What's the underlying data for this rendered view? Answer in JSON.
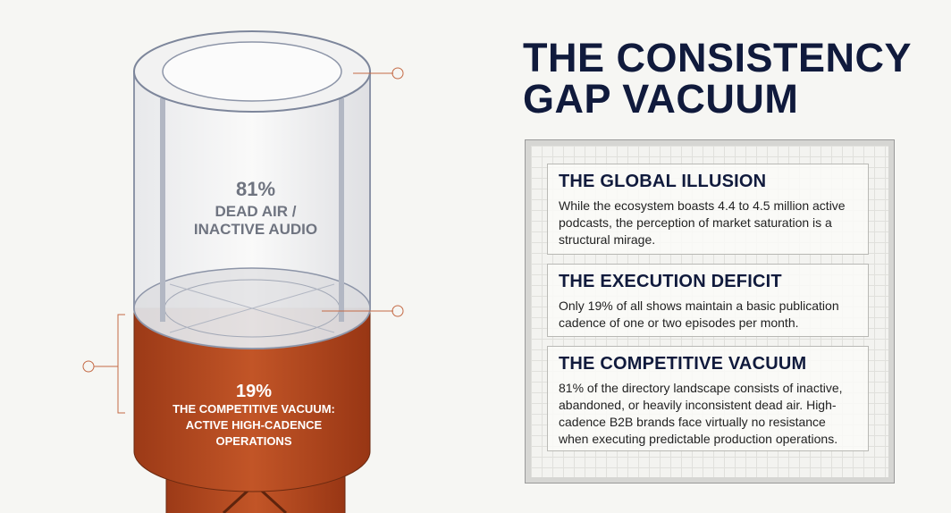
{
  "title": [
    "THE CONSISTENCY",
    "GAP VACUUM"
  ],
  "cylinder": {
    "upper": {
      "value": "81%",
      "label": [
        "DEAD AIR /",
        "INACTIVE AUDIO"
      ]
    },
    "lower": {
      "value": "19%",
      "label": [
        "THE COMPETITIVE VACUUM:",
        "ACTIVE HIGH-CADENCE",
        "OPERATIONS"
      ]
    }
  },
  "panels": [
    {
      "heading": "THE GLOBAL ILLUSION",
      "body": "While the ecosystem boasts 4.4 to 4.5 million active podcasts, the perception of market saturation is a structural mirage."
    },
    {
      "heading": "THE EXECUTION DEFICIT",
      "body": "Only 19% of all shows maintain a basic publication cadence of one or two episodes per month."
    },
    {
      "heading": "THE COMPETITIVE VACUUM",
      "body": "81% of the directory landscape consists of inactive, abandoned, or heavily inconsistent dead air. High-cadence B2B brands face virtually no resistance when executing predictable production operations."
    }
  ]
}
